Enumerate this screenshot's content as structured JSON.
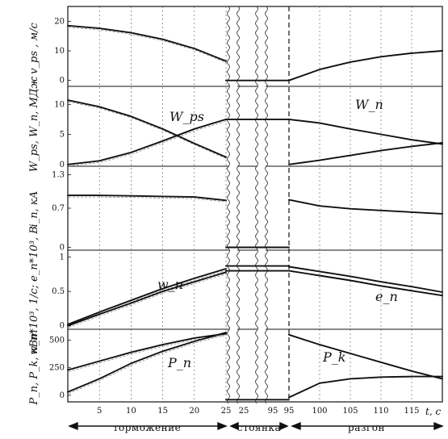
{
  "chart_data": {
    "type": "line",
    "x_ticks_left": [
      5,
      10,
      15,
      20,
      25
    ],
    "x_ticks_right": [
      95,
      100,
      105,
      110,
      115
    ],
    "x_axis_label": "t, c",
    "phases": [
      "торможение",
      "стоянка",
      "разгон"
    ],
    "panels": [
      {
        "ylabel": "v_ps , м/с",
        "yticks": [
          0,
          10,
          20
        ],
        "ylim": [
          -2,
          25
        ],
        "annotations": [],
        "series": [
          {
            "label": "",
            "left": [
              [
                0,
                18.5
              ],
              [
                5,
                17.6
              ],
              [
                10,
                16.1
              ],
              [
                15,
                13.9
              ],
              [
                20,
                10.8
              ],
              [
                25,
                6.5
              ]
            ],
            "stop": [
              [
                25,
                0
              ],
              [
                95,
                0
              ]
            ],
            "right": [
              [
                95,
                0
              ],
              [
                100,
                3.7
              ],
              [
                105,
                6.2
              ],
              [
                110,
                8.0
              ],
              [
                115,
                9.2
              ],
              [
                120,
                10.0
              ]
            ]
          }
        ]
      },
      {
        "ylabel": "W_ps, W_n, МДж",
        "yticks": [
          0,
          5,
          10
        ],
        "ylim": [
          -0.3,
          13
        ],
        "annotations": [
          "W_ps",
          "W_n"
        ],
        "series": [
          {
            "label": "W_ps",
            "left": [
              [
                0,
                10.7
              ],
              [
                5,
                9.6
              ],
              [
                10,
                8.0
              ],
              [
                15,
                5.9
              ],
              [
                20,
                3.5
              ],
              [
                25,
                1.2
              ]
            ],
            "stop": [],
            "right": []
          },
          {
            "label": "W_n",
            "left": [
              [
                0,
                0
              ],
              [
                5,
                0.6
              ],
              [
                10,
                2.0
              ],
              [
                15,
                3.9
              ],
              [
                20,
                5.9
              ],
              [
                25,
                7.5
              ]
            ],
            "stop": [
              [
                25,
                7.5
              ],
              [
                95,
                7.5
              ]
            ],
            "right": [
              [
                95,
                7.5
              ],
              [
                100,
                6.9
              ],
              [
                105,
                5.9
              ],
              [
                110,
                5.0
              ],
              [
                115,
                4.1
              ],
              [
                120,
                3.4
              ]
            ]
          },
          {
            "label": "",
            "left": [],
            "stop": [],
            "right": [
              [
                95,
                0
              ],
              [
                100,
                0.7
              ],
              [
                105,
                1.5
              ],
              [
                110,
                2.3
              ],
              [
                115,
                3.0
              ],
              [
                120,
                3.6
              ]
            ]
          }
        ]
      },
      {
        "ylabel": "i_n, кА",
        "yticks": [
          0,
          0.7,
          1.3
        ],
        "ylim": [
          -0.05,
          1.45
        ],
        "annotations": [],
        "series": [
          {
            "label": "",
            "left": [
              [
                0,
                0.93
              ],
              [
                5,
                0.93
              ],
              [
                10,
                0.92
              ],
              [
                15,
                0.91
              ],
              [
                20,
                0.9
              ],
              [
                25,
                0.84
              ]
            ],
            "stop": [
              [
                25,
                0
              ],
              [
                95,
                0
              ]
            ],
            "right": [
              [
                95,
                0.85
              ],
              [
                100,
                0.74
              ],
              [
                105,
                0.69
              ],
              [
                110,
                0.66
              ],
              [
                115,
                0.63
              ],
              [
                120,
                0.6
              ]
            ]
          }
        ]
      },
      {
        "ylabel": "w_n*10³, 1/с; e_n*10³, В",
        "yticks": [
          0,
          0.5,
          1
        ],
        "ylim": [
          -0.05,
          1.1
        ],
        "annotations": [
          "w_n",
          "e_n"
        ],
        "series": [
          {
            "label": "w_n",
            "left": [
              [
                0,
                0.02
              ],
              [
                5,
                0.2
              ],
              [
                10,
                0.37
              ],
              [
                15,
                0.54
              ],
              [
                20,
                0.69
              ],
              [
                25,
                0.83
              ]
            ],
            "stop": [
              [
                25,
                0.87
              ],
              [
                95,
                0.87
              ]
            ],
            "right": [
              [
                95,
                0.86
              ],
              [
                100,
                0.79
              ],
              [
                105,
                0.72
              ],
              [
                110,
                0.64
              ],
              [
                115,
                0.57
              ],
              [
                120,
                0.49
              ]
            ]
          },
          {
            "label": "e_n",
            "left": [
              [
                0,
                0
              ],
              [
                5,
                0.17
              ],
              [
                10,
                0.33
              ],
              [
                15,
                0.5
              ],
              [
                20,
                0.64
              ],
              [
                25,
                0.78
              ]
            ],
            "stop": [
              [
                25,
                0.8
              ],
              [
                95,
                0.8
              ]
            ],
            "right": [
              [
                95,
                0.8
              ],
              [
                100,
                0.73
              ],
              [
                105,
                0.66
              ],
              [
                110,
                0.58
              ],
              [
                115,
                0.51
              ],
              [
                120,
                0.44
              ]
            ]
          }
        ]
      },
      {
        "ylabel": "P_n, P_k, кВт",
        "yticks": [
          0,
          250,
          500
        ],
        "ylim": [
          -60,
          600
        ],
        "annotations": [
          "P_n",
          "P_k"
        ],
        "series": [
          {
            "label": "P_n",
            "left": [
              [
                0,
                230
              ],
              [
                5,
                310
              ],
              [
                10,
                390
              ],
              [
                15,
                460
              ],
              [
                20,
                520
              ],
              [
                25,
                560
              ]
            ],
            "stop": [
              [
                25,
                -40
              ],
              [
                95,
                -40
              ]
            ],
            "right": [
              [
                95,
                550
              ],
              [
                100,
                460
              ],
              [
                105,
                380
              ],
              [
                110,
                300
              ],
              [
                115,
                220
              ],
              [
                120,
                150
              ]
            ]
          },
          {
            "label": "P_k",
            "left": [
              [
                0,
                30
              ],
              [
                5,
                150
              ],
              [
                10,
                290
              ],
              [
                15,
                400
              ],
              [
                20,
                490
              ],
              [
                25,
                570
              ]
            ],
            "stop": [],
            "right": [
              [
                95,
                -20
              ],
              [
                100,
                110
              ],
              [
                105,
                150
              ],
              [
                110,
                165
              ],
              [
                115,
                170
              ],
              [
                120,
                170
              ]
            ]
          }
        ]
      }
    ]
  }
}
